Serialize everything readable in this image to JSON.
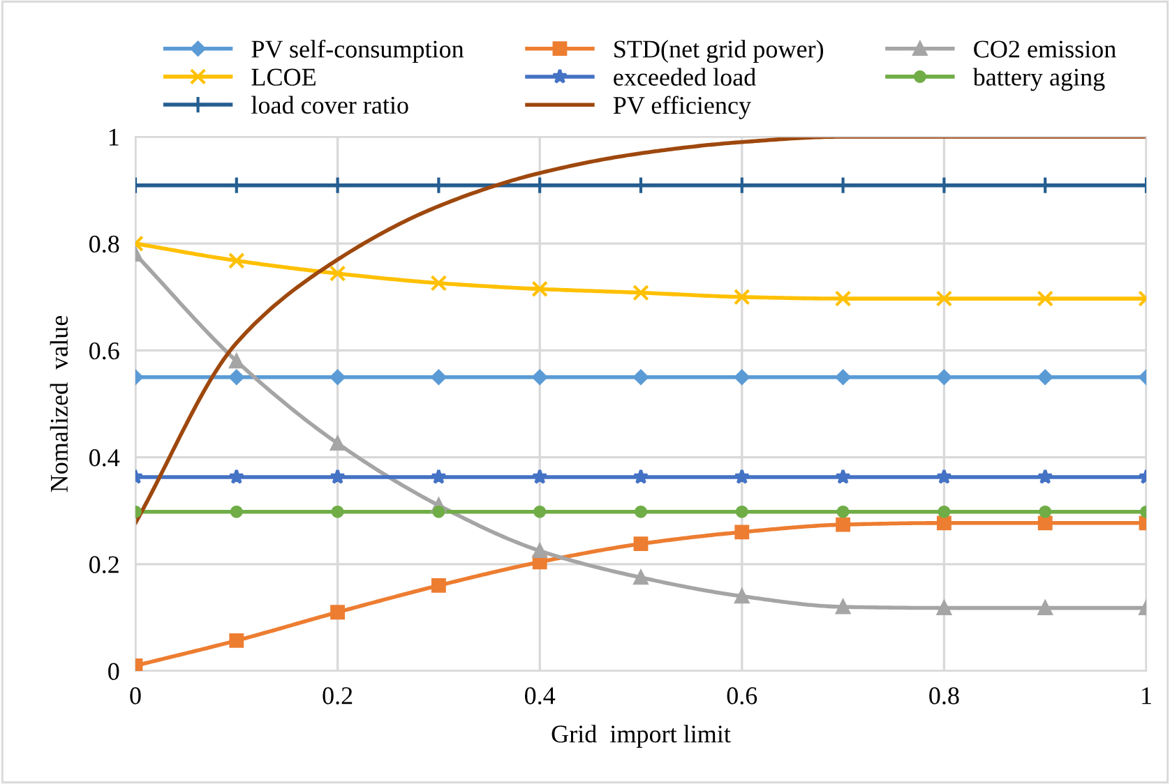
{
  "chart_data": {
    "type": "line",
    "xlabel": "Grid  import limit",
    "ylabel": "Nomalized  value",
    "x": [
      0,
      0.1,
      0.2,
      0.3,
      0.4,
      0.5,
      0.6,
      0.7,
      0.8,
      0.9,
      1
    ],
    "series": [
      {
        "name": "PV self-consumption",
        "color": "#5b9bd5",
        "marker": "diamond",
        "values": [
          0.55,
          0.55,
          0.55,
          0.55,
          0.55,
          0.55,
          0.55,
          0.55,
          0.55,
          0.55,
          0.55
        ]
      },
      {
        "name": "STD(net grid power)",
        "color": "#ed7d31",
        "marker": "square",
        "values": [
          0.01,
          0.057,
          0.11,
          0.16,
          0.204,
          0.238,
          0.26,
          0.274,
          0.277,
          0.277,
          0.277
        ]
      },
      {
        "name": "CO2 emission",
        "color": "#a5a5a5",
        "marker": "triangle",
        "values": [
          0.78,
          0.58,
          0.426,
          0.31,
          0.225,
          0.175,
          0.14,
          0.12,
          0.118,
          0.118,
          0.118
        ]
      },
      {
        "name": "LCOE",
        "color": "#ffc000",
        "marker": "cross",
        "values": [
          0.8,
          0.768,
          0.744,
          0.726,
          0.715,
          0.708,
          0.7,
          0.697,
          0.697,
          0.697,
          0.697
        ]
      },
      {
        "name": "exceeded load",
        "color": "#4472c4",
        "marker": "star",
        "values": [
          0.363,
          0.363,
          0.363,
          0.363,
          0.363,
          0.363,
          0.363,
          0.363,
          0.363,
          0.363,
          0.363
        ]
      },
      {
        "name": "battery aging",
        "color": "#70ad47",
        "marker": "circle",
        "values": [
          0.298,
          0.298,
          0.298,
          0.298,
          0.298,
          0.298,
          0.298,
          0.298,
          0.298,
          0.298,
          0.298
        ]
      },
      {
        "name": "load cover ratio",
        "color": "#255e91",
        "marker": "plus",
        "values": [
          0.909,
          0.909,
          0.909,
          0.909,
          0.909,
          0.909,
          0.909,
          0.909,
          0.909,
          0.909,
          0.909
        ]
      },
      {
        "name": "PV efficiency",
        "color": "#9e480e",
        "marker": "none",
        "values": [
          0.277,
          0.614,
          0.77,
          0.87,
          0.932,
          0.969,
          0.99,
          1.0,
          1.0,
          1.0,
          1.0
        ]
      }
    ],
    "xlim": [
      0,
      1
    ],
    "xticks": [
      0,
      {
        "value": 0.2,
        "label": "0.2"
      },
      {
        "value": 0.4,
        "label": "0.4"
      },
      {
        "value": 0.6,
        "label": "0.6"
      },
      {
        "value": 0.8,
        "label": "0.8"
      },
      1
    ],
    "ylim": [
      0,
      1
    ],
    "yticks": [
      0,
      {
        "value": 0.2,
        "label": "0.2"
      },
      {
        "value": 0.4,
        "label": "0.4"
      },
      {
        "value": 0.6,
        "label": "0.6"
      },
      {
        "value": 0.8,
        "label": "0.8"
      },
      1
    ],
    "grid": true,
    "legend": "top",
    "line_style": "solid"
  }
}
